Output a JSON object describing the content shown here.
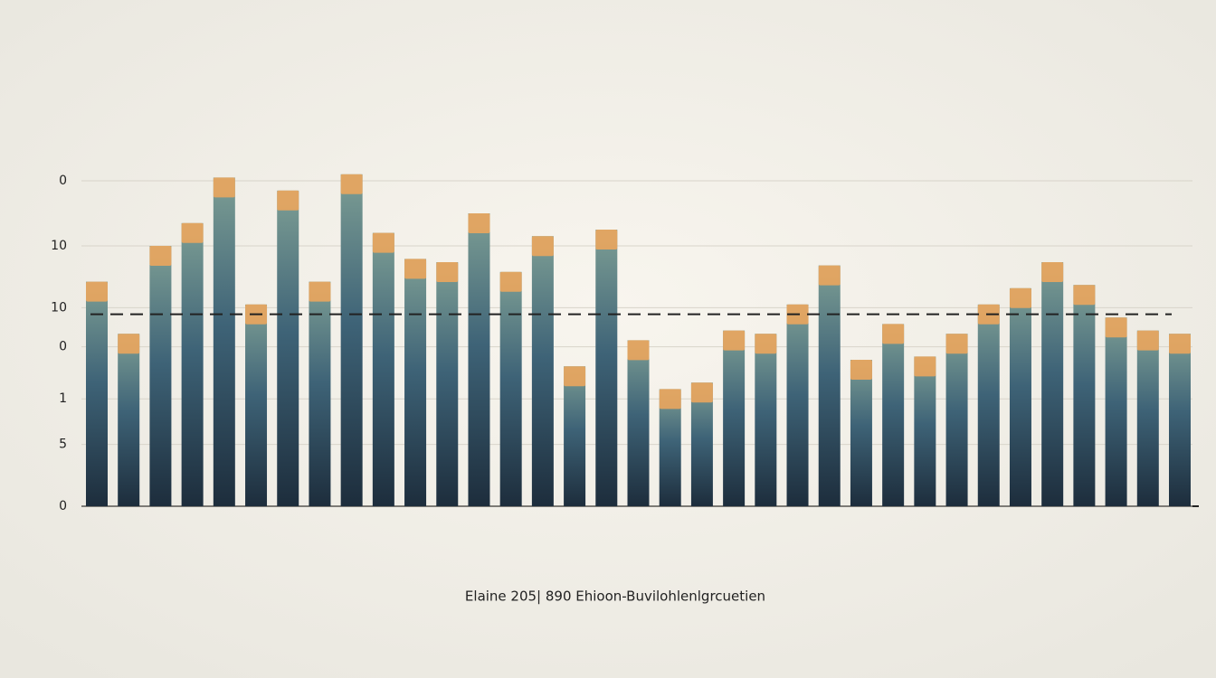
{
  "chart_data": {
    "type": "bar",
    "title": "Elaine 205| 890 Ehioon-Buvilohlenlgrcuetien",
    "values": [
      69,
      53,
      80,
      87,
      101,
      62,
      97,
      69,
      102,
      84,
      76,
      75,
      90,
      72,
      83,
      43,
      85,
      51,
      36,
      38,
      54,
      53,
      62,
      74,
      45,
      56,
      46,
      53,
      62,
      67,
      75,
      68,
      58,
      54,
      53
    ],
    "color": "#3d5f72",
    "cap_color": "#f2a75a",
    "ylim": [
      0,
      105
    ],
    "yticks": [
      0,
      {
        "value": 19,
        "label": "5"
      },
      {
        "value": 33,
        "label": "1"
      },
      {
        "value": 49,
        "label": "0"
      },
      {
        "value": 61,
        "label": "10"
      },
      {
        "value": 80,
        "label": "10"
      },
      {
        "value": 100,
        "label": "0"
      }
    ],
    "grid": true,
    "ref_line": 59
  }
}
